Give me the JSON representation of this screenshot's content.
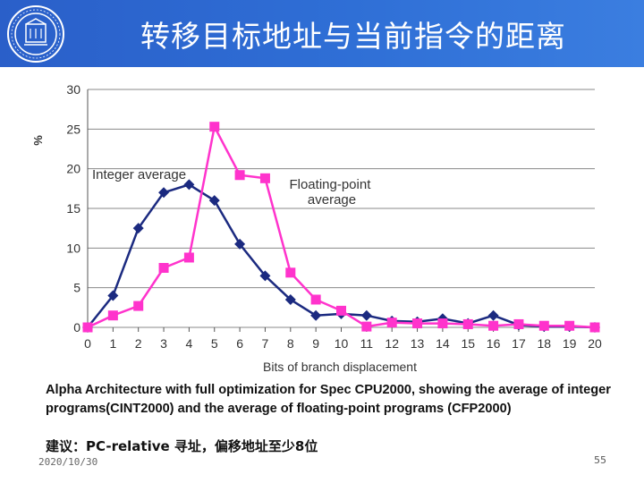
{
  "slide": {
    "title": "转移目标地址与当前指令的距离",
    "caption": "Alpha Architecture with full optimization for Spec CPU2000, showing the average of integer programs(CINT2000) and the average of floating-point programs (CFP2000)",
    "note": "建议：PC-relative 寻址，偏移地址至少8位",
    "date": "2020/10/30",
    "page": "55"
  },
  "colors": {
    "header": "#2f6fd6",
    "integer": "#1b2a80",
    "floating": "#ff33cc",
    "grid": "#888888"
  },
  "chart_data": {
    "type": "line",
    "xlabel": "Bits of branch displacement",
    "ylabel": "%",
    "x": [
      0,
      1,
      2,
      3,
      4,
      5,
      6,
      7,
      8,
      9,
      10,
      11,
      12,
      13,
      14,
      15,
      16,
      17,
      18,
      19,
      20
    ],
    "ylim": [
      0,
      30
    ],
    "yticks": [
      0,
      5,
      10,
      15,
      20,
      25,
      30
    ],
    "grid": true,
    "series": [
      {
        "name": "Integer average",
        "marker": "diamond",
        "values": [
          0,
          4,
          12.5,
          17,
          18,
          16,
          10.5,
          6.5,
          3.5,
          1.5,
          1.7,
          1.5,
          0.8,
          0.7,
          1.1,
          0.5,
          1.5,
          0.3,
          0.1,
          0.1,
          0
        ]
      },
      {
        "name": "Floating-point average",
        "marker": "square",
        "values": [
          0,
          1.5,
          2.7,
          7.5,
          8.8,
          25.3,
          19.2,
          18.8,
          6.9,
          3.5,
          2.1,
          0.1,
          0.6,
          0.5,
          0.5,
          0.4,
          0.2,
          0.4,
          0.2,
          0.2,
          0
        ]
      }
    ]
  }
}
